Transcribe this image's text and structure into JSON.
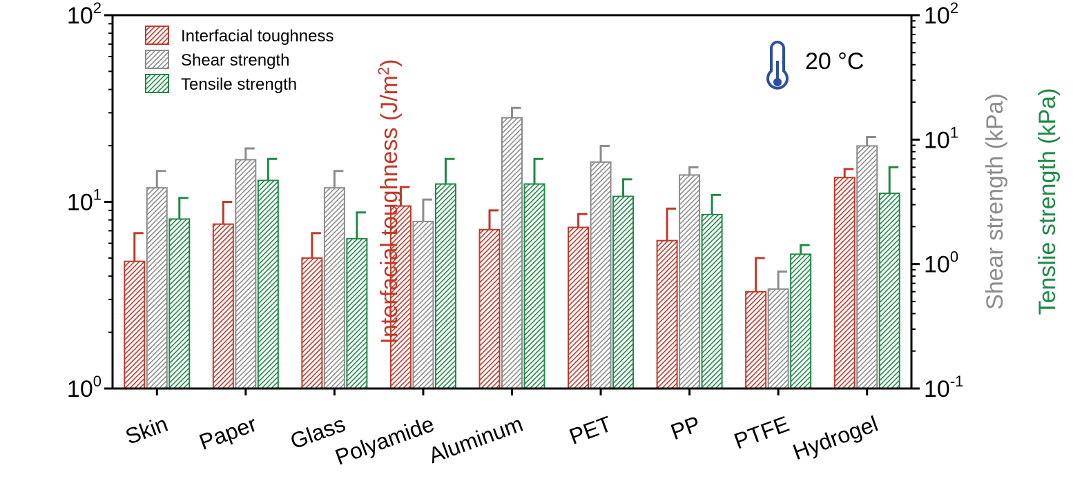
{
  "chart_data": {
    "type": "bar",
    "categories": [
      "Skin",
      "Paper",
      "Glass",
      "Polyamide",
      "Aluminum",
      "PET",
      "PP",
      "PTFE",
      "Hydrogel"
    ],
    "series": [
      {
        "name": "Interfacial toughness",
        "axis": "left",
        "color": "#c0392b",
        "values": [
          4.8,
          7.6,
          5.0,
          9.5,
          7.1,
          7.3,
          6.2,
          3.3,
          13.5
        ],
        "errors": [
          6.8,
          10.0,
          6.8,
          12.0,
          9.0,
          8.6,
          9.2,
          5.0,
          15.0
        ]
      },
      {
        "name": "Shear strength",
        "axis": "right",
        "color": "#8c8c8c",
        "values": [
          4.1,
          6.9,
          4.1,
          2.2,
          15.0,
          6.6,
          5.2,
          0.63,
          8.9
        ],
        "errors": [
          5.6,
          8.5,
          5.6,
          3.3,
          18.0,
          8.9,
          6.0,
          0.87,
          10.5
        ]
      },
      {
        "name": "Tensile strength",
        "axis": "right",
        "color": "#1e8a45",
        "values": [
          2.3,
          4.7,
          1.6,
          4.4,
          4.4,
          3.5,
          2.5,
          1.2,
          3.7
        ],
        "errors": [
          3.4,
          7.0,
          2.6,
          7.0,
          7.0,
          4.8,
          3.6,
          1.42,
          6.0
        ]
      }
    ],
    "left_axis": {
      "label_main": "Interfacial toughness (J/m",
      "label_sup": "2",
      "label_close": ")",
      "scale": "log",
      "range": [
        1,
        100
      ],
      "ticks": [
        {
          "value": 1,
          "base": "10",
          "exp": "0"
        },
        {
          "value": 10,
          "base": "10",
          "exp": "1"
        },
        {
          "value": 100,
          "base": "10",
          "exp": "2"
        }
      ],
      "color": "#c0392b"
    },
    "right_axis": {
      "label_shear": "Shear strength (kPa)",
      "label_tensile": "Tenslie strength (kPa)",
      "scale": "log",
      "range": [
        0.1,
        100
      ],
      "ticks": [
        {
          "value": 0.1,
          "base": "10",
          "exp": "-1"
        },
        {
          "value": 1,
          "base": "10",
          "exp": "0"
        },
        {
          "value": 10,
          "base": "10",
          "exp": "1"
        },
        {
          "value": 100,
          "base": "10",
          "exp": "2"
        }
      ],
      "shear_color": "#8c8c8c",
      "tensile_color": "#1e8a45"
    },
    "legend_position": "top-left",
    "annotation": {
      "text": "20 °C",
      "icon": "thermometer-icon",
      "icon_color": "#2b4fa3"
    },
    "grid": false
  }
}
